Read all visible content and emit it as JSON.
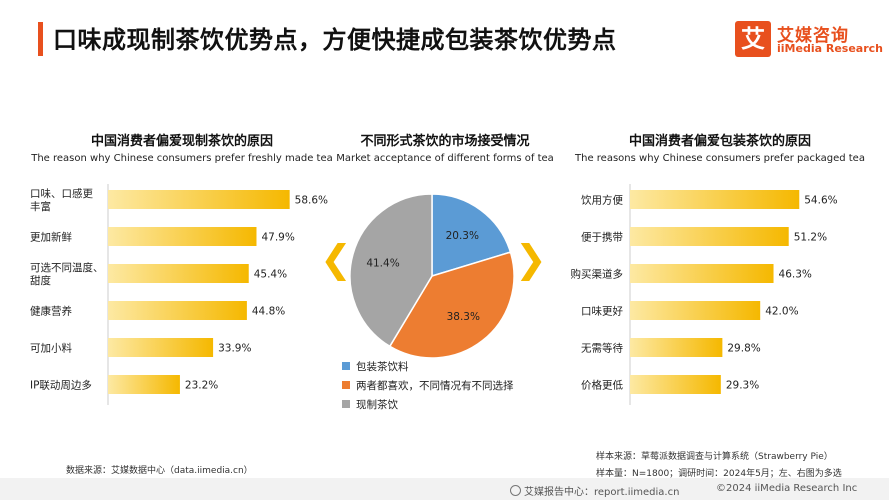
{
  "header": {
    "title": "口味成现制茶饮优势点，方便快捷成包装茶饮优势点",
    "logo_mark": "艾",
    "logo_cn": "艾媒咨询",
    "logo_en": "iiMedia Research"
  },
  "nav": {
    "left_chevron": "❮",
    "right_chevron": "❯"
  },
  "sources": {
    "left": "数据来源：艾媒数据中心（data.iimedia.cn）",
    "right_line1": "样本来源：草莓派数据调查与计算系统（Strawberry Pie）",
    "right_line2": "样本量：N=1800；调研时间：2024年5月；左、右图为多选"
  },
  "footer": {
    "left": "艾媒报告中心：report.iimedia.cn",
    "right": "©2024  iiMedia Research  Inc"
  },
  "colors": {
    "accent": "#e8501e",
    "bar_gold": "#f5b800",
    "pie_blue": "#5b9bd5",
    "pie_orange": "#ed7d31",
    "pie_gray": "#a5a5a5"
  },
  "chart_data": [
    {
      "type": "bar",
      "orientation": "horizontal",
      "title": "中国消费者偏爱现制茶饮的原因",
      "subtitle": "The reason why Chinese consumers prefer freshly made tea",
      "categories": [
        "口味、口感更丰富",
        "更加新鲜",
        "可选不同温度、甜度",
        "健康营养",
        "可加小料",
        "IP联动周边多"
      ],
      "category_lines": [
        [
          "口味、口感更",
          "丰富"
        ],
        [
          "更加新鲜"
        ],
        [
          "可选不同温度、",
          "甜度"
        ],
        [
          "健康营养"
        ],
        [
          "可加小料"
        ],
        [
          "IP联动周边多"
        ]
      ],
      "values": [
        58.6,
        47.9,
        45.4,
        44.8,
        33.9,
        23.2
      ],
      "value_labels": [
        "58.6%",
        "47.9%",
        "45.4%",
        "44.8%",
        "33.9%",
        "23.2%"
      ],
      "unit": "%",
      "xlim": [
        0,
        100
      ],
      "grid": false
    },
    {
      "type": "pie",
      "title": "不同形式茶饮的市场接受情况",
      "subtitle": "Market acceptance of different forms of tea",
      "labels": [
        "包装茶饮料",
        "两者都喜欢，不同情况有不同选择",
        "现制茶饮"
      ],
      "values": [
        20.3,
        38.3,
        41.4
      ],
      "value_labels": [
        "20.3%",
        "38.3%",
        "41.4%"
      ],
      "unit": "%",
      "legend": "bottom"
    },
    {
      "type": "bar",
      "orientation": "horizontal",
      "title": "中国消费者偏爱包装茶饮的原因",
      "subtitle": "The reasons why Chinese consumers prefer packaged tea",
      "categories": [
        "饮用方便",
        "便于携带",
        "购买渠道多",
        "口味更好",
        "无需等待",
        "价格更低"
      ],
      "category_lines": [
        [
          "饮用方便"
        ],
        [
          "便于携带"
        ],
        [
          "购买渠道多"
        ],
        [
          "口味更好"
        ],
        [
          "无需等待"
        ],
        [
          "价格更低"
        ]
      ],
      "values": [
        54.6,
        51.2,
        46.3,
        42.0,
        29.8,
        29.3
      ],
      "value_labels": [
        "54.6%",
        "51.2%",
        "46.3%",
        "42.0%",
        "29.8%",
        "29.3%"
      ],
      "unit": "%",
      "xlim": [
        0,
        100
      ],
      "grid": false
    }
  ]
}
